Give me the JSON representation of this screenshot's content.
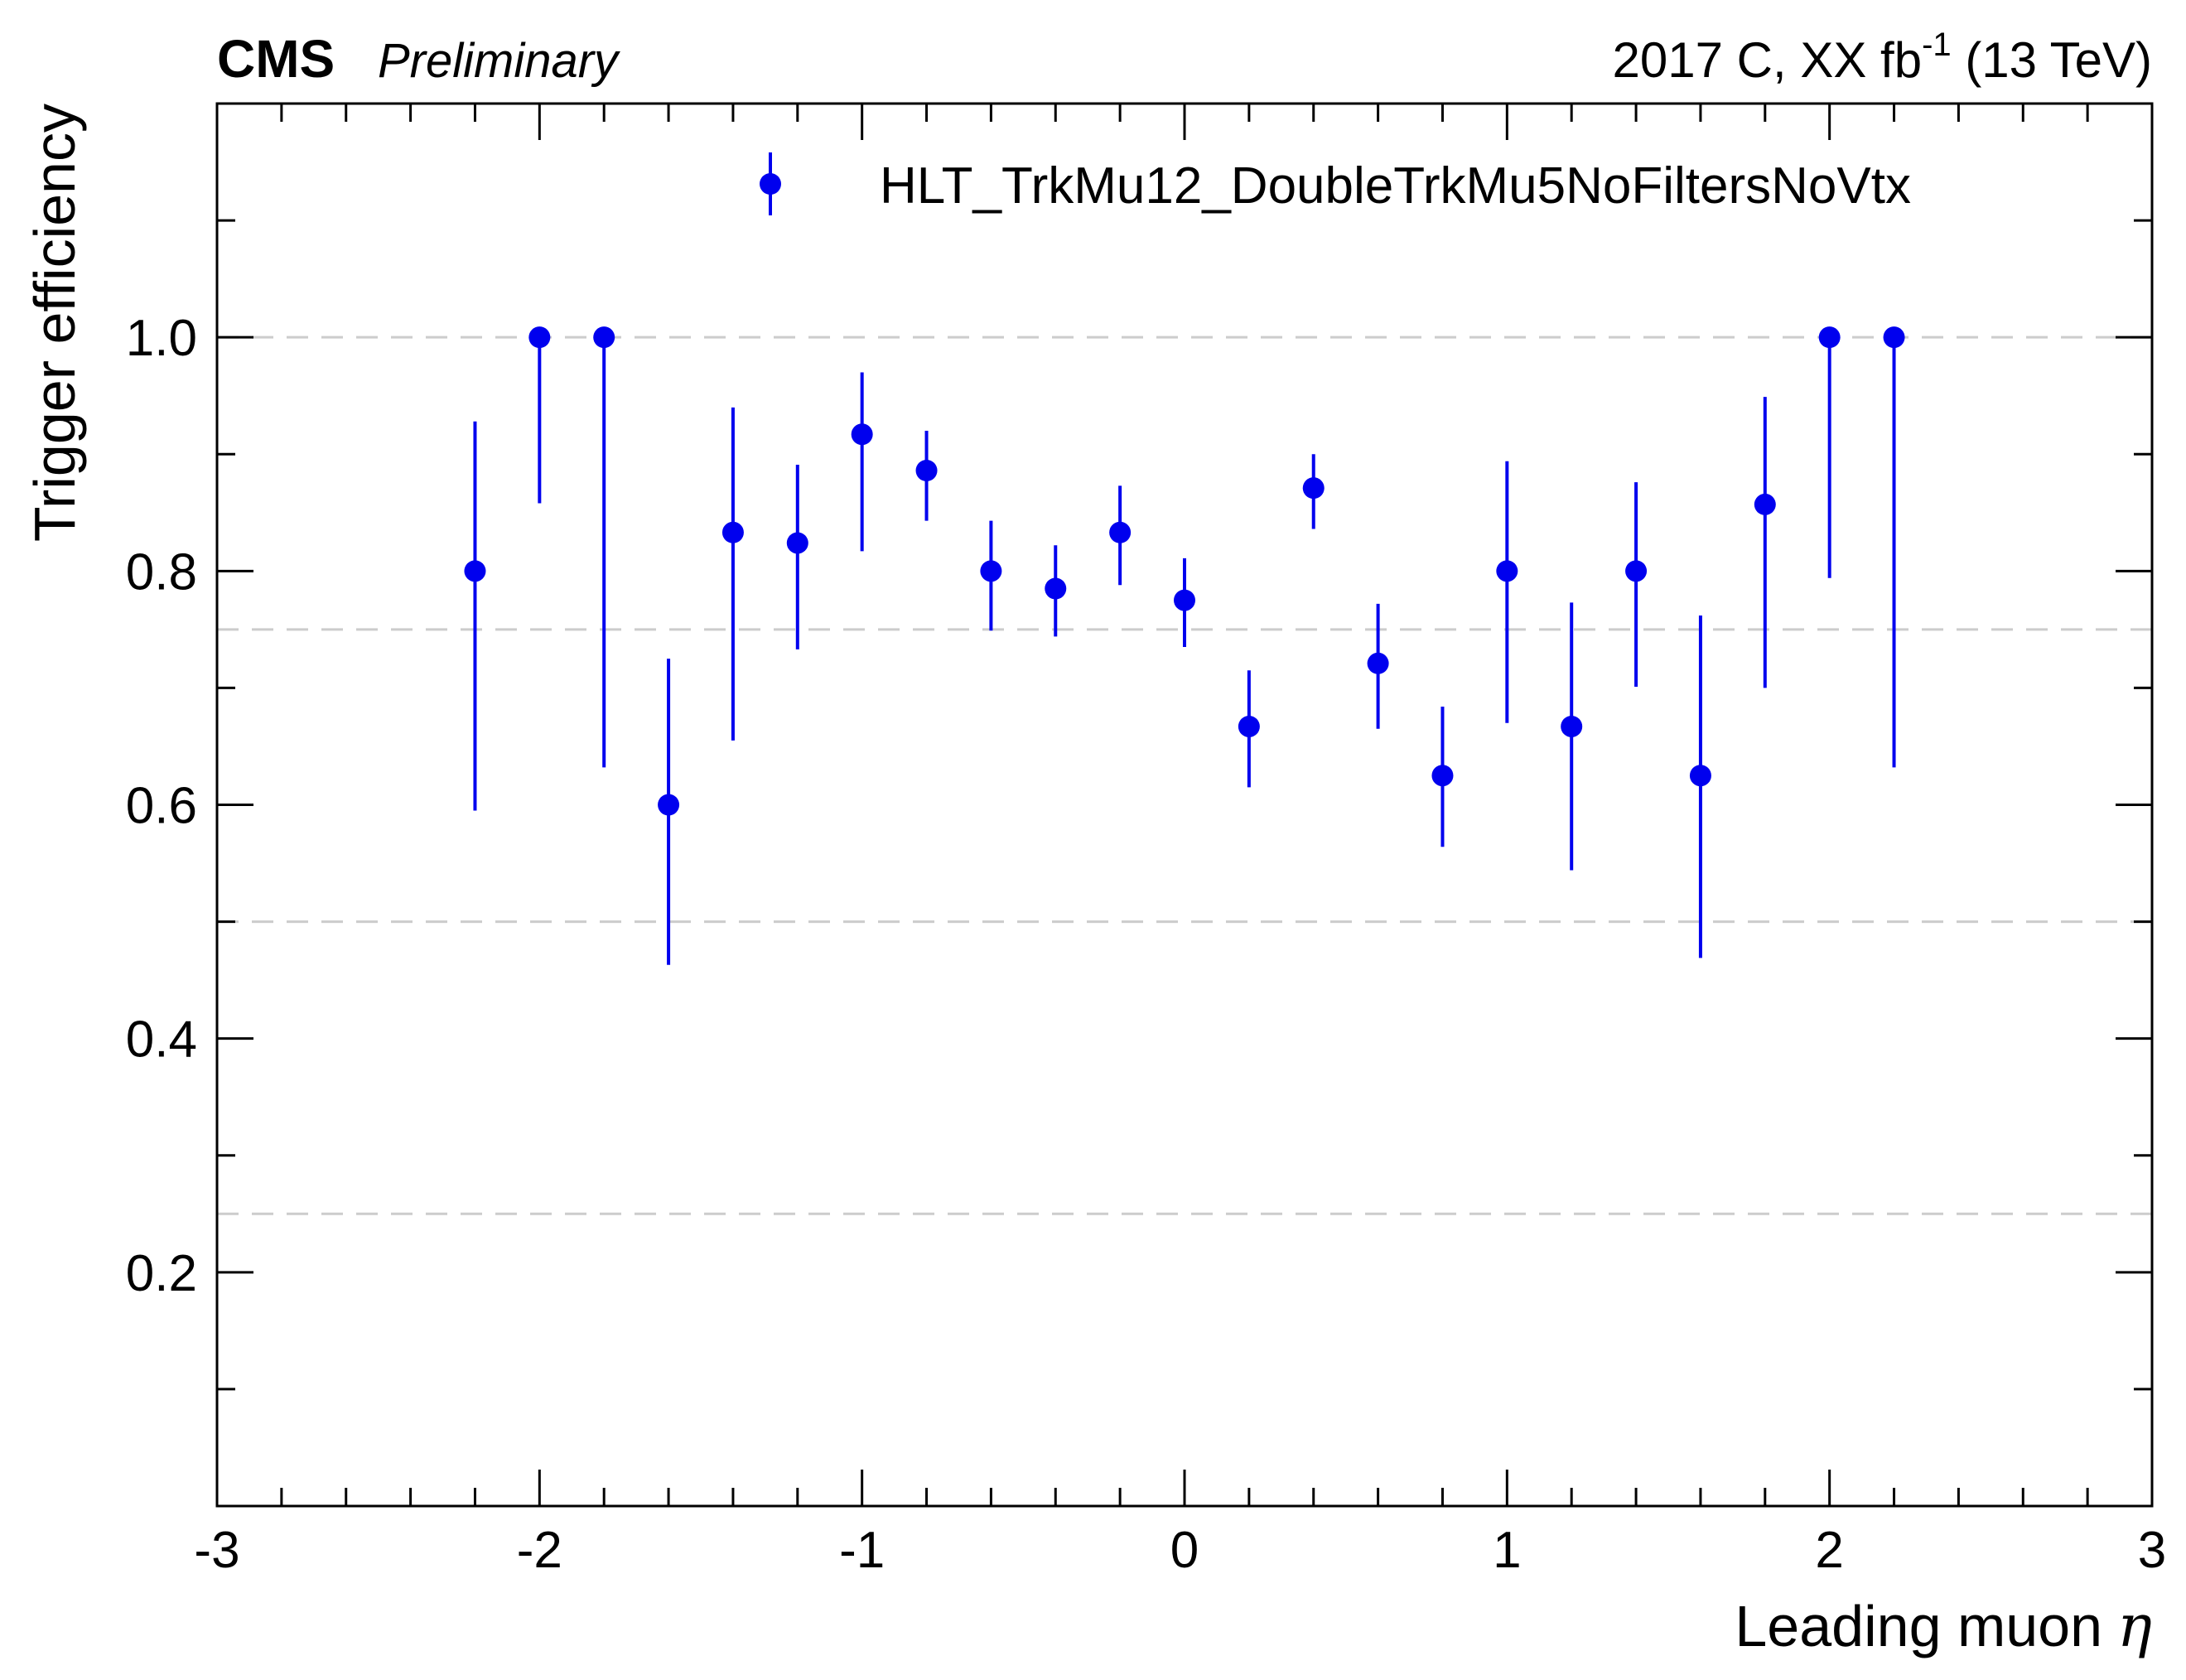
{
  "chart_data": {
    "type": "scatter",
    "experiment": "CMS",
    "status": "Preliminary",
    "run_info_prefix": "2017 C, XX fb",
    "run_info_exp": "-1",
    "run_info_suffix": " (13 TeV)",
    "xlabel": "Leading muon",
    "xlabel_symbol": "η",
    "ylabel": "Trigger efficiency",
    "xlim": [
      -3,
      3
    ],
    "ylim": [
      0,
      1.2
    ],
    "x_ticks": [
      -3,
      -2,
      -1,
      0,
      1,
      2,
      3
    ],
    "y_ticks": [
      0.2,
      0.4,
      0.6,
      0.8,
      1.0
    ],
    "x_tick_labels": [
      "-3",
      "-2",
      "-1",
      "0",
      "1",
      "2",
      "3"
    ],
    "y_tick_labels": [
      "0.2",
      "0.4",
      "0.6",
      "0.8",
      "1.0"
    ],
    "gridlines_y": [
      0.25,
      0.5,
      0.75,
      1.0
    ],
    "legend_position": "top-right",
    "series": [
      {
        "name": "HLT_TrkMu12_DoubleTrkMu5NoFiltersNoVtx",
        "color": "#0000ee",
        "points": [
          {
            "x": -2.2,
            "y": 0.8,
            "lo": 0.595,
            "hi": 0.928
          },
          {
            "x": -2.0,
            "y": 1.0,
            "lo": 0.858,
            "hi": 1.0
          },
          {
            "x": -1.8,
            "y": 1.0,
            "lo": 0.632,
            "hi": 1.0
          },
          {
            "x": -1.6,
            "y": 0.6,
            "lo": 0.463,
            "hi": 0.725
          },
          {
            "x": -1.4,
            "y": 0.833,
            "lo": 0.655,
            "hi": 0.94
          },
          {
            "x": -1.2,
            "y": 0.824,
            "lo": 0.733,
            "hi": 0.891
          },
          {
            "x": -1.0,
            "y": 0.917,
            "lo": 0.817,
            "hi": 0.97
          },
          {
            "x": -0.8,
            "y": 0.886,
            "lo": 0.843,
            "hi": 0.92
          },
          {
            "x": -0.6,
            "y": 0.8,
            "lo": 0.749,
            "hi": 0.843
          },
          {
            "x": -0.4,
            "y": 0.785,
            "lo": 0.744,
            "hi": 0.822
          },
          {
            "x": -0.2,
            "y": 0.833,
            "lo": 0.788,
            "hi": 0.873
          },
          {
            "x": 0.0,
            "y": 0.775,
            "lo": 0.735,
            "hi": 0.811
          },
          {
            "x": 0.2,
            "y": 0.667,
            "lo": 0.615,
            "hi": 0.715
          },
          {
            "x": 0.4,
            "y": 0.871,
            "lo": 0.836,
            "hi": 0.9
          },
          {
            "x": 0.6,
            "y": 0.721,
            "lo": 0.665,
            "hi": 0.772
          },
          {
            "x": 0.8,
            "y": 0.625,
            "lo": 0.564,
            "hi": 0.684
          },
          {
            "x": 1.0,
            "y": 0.8,
            "lo": 0.67,
            "hi": 0.894
          },
          {
            "x": 1.2,
            "y": 0.667,
            "lo": 0.544,
            "hi": 0.773
          },
          {
            "x": 1.4,
            "y": 0.8,
            "lo": 0.701,
            "hi": 0.876
          },
          {
            "x": 1.6,
            "y": 0.625,
            "lo": 0.469,
            "hi": 0.762
          },
          {
            "x": 1.8,
            "y": 0.857,
            "lo": 0.7,
            "hi": 0.949
          },
          {
            "x": 2.0,
            "y": 1.0,
            "lo": 0.794,
            "hi": 1.0
          },
          {
            "x": 2.2,
            "y": 1.0,
            "lo": 0.632,
            "hi": 1.0
          }
        ]
      }
    ]
  }
}
